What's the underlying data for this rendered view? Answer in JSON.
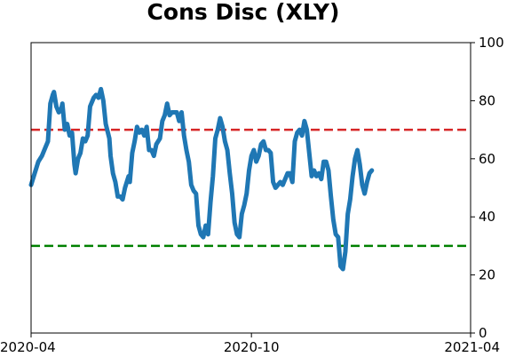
{
  "chart_data": {
    "type": "line",
    "title": "Cons Disc (XLY)",
    "xlabel": "",
    "ylabel": "",
    "x_range": [
      "2020-04-01",
      "2021-04-01"
    ],
    "x_ticks": [
      {
        "date": "2020-04-01",
        "label": "2020-04"
      },
      {
        "date": "2020-10-01",
        "label": "2020-10"
      },
      {
        "date": "2021-04-01",
        "label": "2021-04"
      }
    ],
    "ylim": [
      0,
      100
    ],
    "y_ticks": [
      0,
      20,
      40,
      60,
      80,
      100
    ],
    "y_axis_side": "right",
    "grid": false,
    "legend": "none",
    "colors": {
      "series": "#1f77b4",
      "upper_threshold": "#d62728",
      "lower_threshold": "#008000"
    },
    "reference_lines": [
      {
        "y": 70,
        "style": "dashed",
        "color": "#d62728"
      },
      {
        "y": 30,
        "style": "dashed",
        "color": "#008000"
      }
    ],
    "series": [
      {
        "points": [
          [
            "2020-04-01",
            51
          ],
          [
            "2020-04-04",
            55
          ],
          [
            "2020-04-07",
            59
          ],
          [
            "2020-04-10",
            61
          ],
          [
            "2020-04-13",
            64
          ],
          [
            "2020-04-15",
            66
          ],
          [
            "2020-04-17",
            79
          ],
          [
            "2020-04-19",
            82
          ],
          [
            "2020-04-20",
            83
          ],
          [
            "2020-04-22",
            78
          ],
          [
            "2020-04-24",
            76
          ],
          [
            "2020-04-26",
            77
          ],
          [
            "2020-04-27",
            79
          ],
          [
            "2020-04-29",
            70
          ],
          [
            "2020-05-01",
            72
          ],
          [
            "2020-05-03",
            68
          ],
          [
            "2020-05-05",
            69
          ],
          [
            "2020-05-07",
            58
          ],
          [
            "2020-05-08",
            55
          ],
          [
            "2020-05-10",
            60
          ],
          [
            "2020-05-12",
            62
          ],
          [
            "2020-05-14",
            67
          ],
          [
            "2020-05-16",
            66
          ],
          [
            "2020-05-18",
            68
          ],
          [
            "2020-05-20",
            78
          ],
          [
            "2020-05-23",
            81
          ],
          [
            "2020-05-25",
            82
          ],
          [
            "2020-05-27",
            81
          ],
          [
            "2020-05-29",
            84
          ],
          [
            "2020-05-31",
            80
          ],
          [
            "2020-06-02",
            72
          ],
          [
            "2020-06-05",
            67
          ],
          [
            "2020-06-06",
            61
          ],
          [
            "2020-06-08",
            55
          ],
          [
            "2020-06-10",
            52
          ],
          [
            "2020-06-12",
            47
          ],
          [
            "2020-06-14",
            47
          ],
          [
            "2020-06-16",
            46
          ],
          [
            "2020-06-18",
            50
          ],
          [
            "2020-06-21",
            54
          ],
          [
            "2020-06-22",
            52
          ],
          [
            "2020-06-24",
            62
          ],
          [
            "2020-06-26",
            66
          ],
          [
            "2020-06-28",
            71
          ],
          [
            "2020-06-30",
            69
          ],
          [
            "2020-07-02",
            70
          ],
          [
            "2020-07-04",
            68
          ],
          [
            "2020-07-06",
            71
          ],
          [
            "2020-07-08",
            63
          ],
          [
            "2020-07-10",
            63
          ],
          [
            "2020-07-12",
            61
          ],
          [
            "2020-07-14",
            65
          ],
          [
            "2020-07-17",
            67
          ],
          [
            "2020-07-19",
            73
          ],
          [
            "2020-07-21",
            75
          ],
          [
            "2020-07-23",
            79
          ],
          [
            "2020-07-25",
            75
          ],
          [
            "2020-07-27",
            76
          ],
          [
            "2020-07-29",
            76
          ],
          [
            "2020-07-31",
            76
          ],
          [
            "2020-08-02",
            73
          ],
          [
            "2020-08-04",
            76
          ],
          [
            "2020-08-06",
            68
          ],
          [
            "2020-08-08",
            63
          ],
          [
            "2020-08-10",
            59
          ],
          [
            "2020-08-12",
            51
          ],
          [
            "2020-08-14",
            49
          ],
          [
            "2020-08-16",
            48
          ],
          [
            "2020-08-18",
            37
          ],
          [
            "2020-08-20",
            34
          ],
          [
            "2020-08-22",
            33
          ],
          [
            "2020-08-24",
            37
          ],
          [
            "2020-08-26",
            34
          ],
          [
            "2020-08-28",
            45
          ],
          [
            "2020-08-30",
            54
          ],
          [
            "2020-09-01",
            67
          ],
          [
            "2020-09-03",
            70
          ],
          [
            "2020-09-05",
            74
          ],
          [
            "2020-09-07",
            71
          ],
          [
            "2020-09-09",
            66
          ],
          [
            "2020-09-11",
            63
          ],
          [
            "2020-09-13",
            55
          ],
          [
            "2020-09-15",
            48
          ],
          [
            "2020-09-17",
            38
          ],
          [
            "2020-09-19",
            34
          ],
          [
            "2020-09-21",
            33
          ],
          [
            "2020-09-23",
            41
          ],
          [
            "2020-09-25",
            44
          ],
          [
            "2020-09-27",
            48
          ],
          [
            "2020-09-29",
            56
          ],
          [
            "2020-10-01",
            61
          ],
          [
            "2020-10-03",
            63
          ],
          [
            "2020-10-05",
            59
          ],
          [
            "2020-10-07",
            61
          ],
          [
            "2020-10-09",
            65
          ],
          [
            "2020-10-11",
            66
          ],
          [
            "2020-10-13",
            63
          ],
          [
            "2020-10-15",
            63
          ],
          [
            "2020-10-17",
            62
          ],
          [
            "2020-10-19",
            52
          ],
          [
            "2020-10-21",
            50
          ],
          [
            "2020-10-23",
            51
          ],
          [
            "2020-10-25",
            52
          ],
          [
            "2020-10-27",
            51
          ],
          [
            "2020-10-29",
            53
          ],
          [
            "2020-10-31",
            55
          ],
          [
            "2020-11-02",
            55
          ],
          [
            "2020-11-04",
            52
          ],
          [
            "2020-11-06",
            66
          ],
          [
            "2020-11-08",
            69
          ],
          [
            "2020-11-10",
            70
          ],
          [
            "2020-11-12",
            68
          ],
          [
            "2020-11-14",
            73
          ],
          [
            "2020-11-16",
            70
          ],
          [
            "2020-11-18",
            62
          ],
          [
            "2020-11-20",
            54
          ],
          [
            "2020-11-22",
            56
          ],
          [
            "2020-11-24",
            54
          ],
          [
            "2020-11-26",
            55
          ],
          [
            "2020-11-28",
            53
          ],
          [
            "2020-11-30",
            59
          ],
          [
            "2020-12-02",
            59
          ],
          [
            "2020-12-04",
            56
          ],
          [
            "2020-12-06",
            47
          ],
          [
            "2020-12-08",
            39
          ],
          [
            "2020-12-10",
            34
          ],
          [
            "2020-12-12",
            33
          ],
          [
            "2020-12-14",
            23
          ],
          [
            "2020-12-16",
            22
          ],
          [
            "2020-12-18",
            28
          ],
          [
            "2020-12-20",
            41
          ],
          [
            "2020-12-22",
            46
          ],
          [
            "2020-12-24",
            54
          ],
          [
            "2020-12-26",
            60
          ],
          [
            "2020-12-28",
            63
          ],
          [
            "2020-12-30",
            58
          ],
          [
            "2021-01-01",
            51
          ],
          [
            "2021-01-03",
            48
          ],
          [
            "2021-01-05",
            52
          ],
          [
            "2021-01-07",
            55
          ],
          [
            "2021-01-09",
            56
          ]
        ]
      }
    ]
  }
}
